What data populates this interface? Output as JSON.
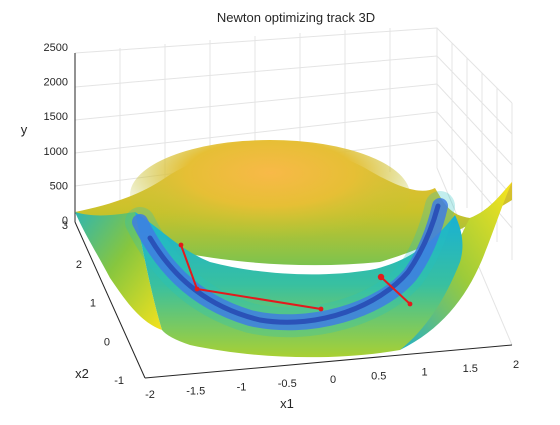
{
  "chart_data": {
    "type": "surface",
    "title": "Newton optimizing track 3D",
    "xlabel": "x1",
    "ylabel": "x2",
    "zlabel": "y",
    "xlim": [
      -2,
      2
    ],
    "ylim": [
      -1,
      3
    ],
    "zlim": [
      0,
      2500
    ],
    "xticks": [
      "-2",
      "-1.5",
      "-1",
      "-0.5",
      "0",
      "0.5",
      "1",
      "1.5",
      "2"
    ],
    "yticks": [
      "-1",
      "0",
      "1",
      "2",
      "3"
    ],
    "zticks": [
      "0",
      "500",
      "1000",
      "1500",
      "2000",
      "2500"
    ],
    "grid": true,
    "surface": "Rosenbrock-shaped valley surface, parula colormap",
    "colors": {
      "track": "#e31a1c",
      "valley": "#3a2bd6",
      "rim": "#f9e41d"
    },
    "series": [
      {
        "x": [
          -1.6,
          -1.45,
          -0.05
        ],
        "y": [
          2.5,
          1.9,
          0.9
        ]
      },
      {
        "x": [
          0.95,
          1.35
        ],
        "y": [
          1.3,
          0.6
        ]
      }
    ]
  }
}
